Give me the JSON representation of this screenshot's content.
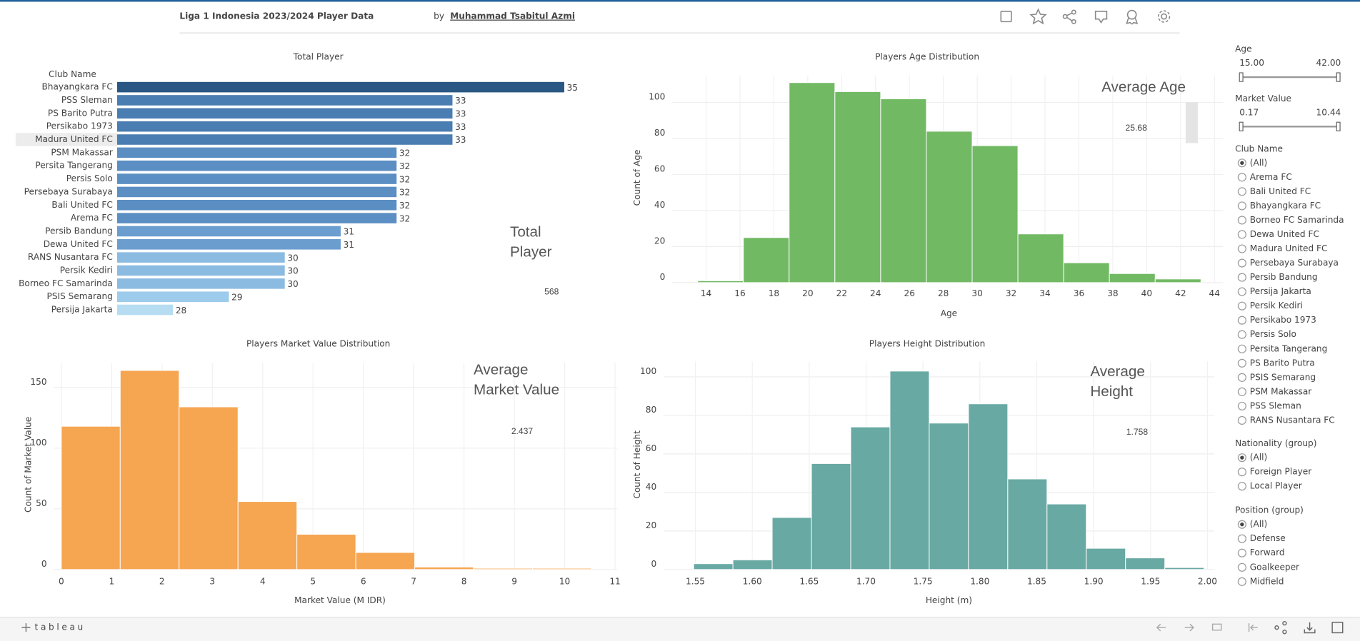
{
  "header": {
    "title": "Liga 1 Indonesia 2023/2024 Player Data",
    "by": "by",
    "author": "Muhammad Tsabitul Azmi"
  },
  "footer": {
    "brand": "tableau"
  },
  "kpis": [
    {
      "label": "Total Player",
      "value": 568
    },
    {
      "label": "Average Age",
      "value": 25.68
    },
    {
      "label": "Average Market Value",
      "value": 2.437
    },
    {
      "label": "Average Height",
      "value": 1.758
    }
  ],
  "filters": {
    "age": {
      "label": "Age",
      "min": "15.00",
      "max": "42.00"
    },
    "market_value": {
      "label": "Market Value",
      "min": "0.17",
      "max": "10.44"
    },
    "club": {
      "label": "Club Name",
      "options": [
        "(All)",
        "Arema FC",
        "Bali United FC",
        "Bhayangkara FC",
        "Borneo FC Samarinda",
        "Dewa United FC",
        "Madura United FC",
        "Persebaya Surabaya",
        "Persib Bandung",
        "Persija Jakarta",
        "Persik Kediri",
        "Persikabo 1973",
        "Persis Solo",
        "Persita Tangerang",
        "PS Barito Putra",
        "PSIS Semarang",
        "PSM Makassar",
        "PSS Sleman",
        "RANS Nusantara FC"
      ]
    },
    "nationality": {
      "label": "Nationality (group)",
      "options": [
        "(All)",
        "Foreign Player",
        "Local Player"
      ]
    },
    "position": {
      "label": "Position (group)",
      "options": [
        "(All)",
        "Defense",
        "Forward",
        "Goalkeeper",
        "Midfield"
      ]
    }
  },
  "chart_data": [
    {
      "type": "hbar",
      "title": "Total Player",
      "y_label": "Club Name",
      "categories": [
        "Bhayangkara FC",
        "PSS Sleman",
        "PS Barito Putra",
        "Persikabo 1973",
        "Madura United FC",
        "PSM Makassar",
        "Persita Tangerang",
        "Persis Solo",
        "Persebaya Surabaya",
        "Bali United FC",
        "Arema FC",
        "Persib Bandung",
        "Dewa United FC",
        "RANS Nusantara FC",
        "Persik Kediri",
        "Borneo FC Samarinda",
        "PSIS Semarang",
        "Persija Jakarta"
      ],
      "values": [
        35,
        33,
        33,
        33,
        33,
        32,
        32,
        32,
        32,
        32,
        32,
        31,
        31,
        30,
        30,
        30,
        29,
        28
      ],
      "colors": [
        "#2a5783",
        "#4a7db1",
        "#4a7db1",
        "#4a7db1",
        "#4a7db1",
        "#5b8ec2",
        "#5b8ec2",
        "#5b8ec2",
        "#5b8ec2",
        "#5b8ec2",
        "#5b8ec2",
        "#6b9dcf",
        "#6b9dcf",
        "#8cbbe2",
        "#8cbbe2",
        "#8cbbe2",
        "#9dcbeb",
        "#b6dcf2"
      ],
      "xlim": [
        27,
        36
      ]
    },
    {
      "type": "histogram",
      "title": "Players Age Distribution",
      "x_label": "Age",
      "y_label": "Count of Age",
      "color": "#72b964",
      "bins": [
        13.5,
        16.2,
        18.9,
        21.6,
        24.3,
        27,
        29.7,
        32.4,
        35.1,
        37.8,
        40.5,
        43.2
      ],
      "counts": [
        1,
        25,
        111,
        106,
        102,
        84,
        76,
        27,
        11,
        5,
        2
      ],
      "xlim": [
        12,
        44.5
      ],
      "ylim": [
        0,
        115
      ],
      "xticks": [
        14,
        16,
        18,
        20,
        22,
        24,
        26,
        28,
        30,
        32,
        34,
        36,
        38,
        40,
        42,
        44
      ],
      "yticks": [
        0,
        20,
        40,
        60,
        80,
        100
      ]
    },
    {
      "type": "histogram",
      "title": "Players Market Value Distribution",
      "x_label": "Market Value (M IDR)",
      "y_label": "Count of Market Value",
      "color": "#f6a551",
      "bins": [
        0,
        1.17,
        2.34,
        3.51,
        4.68,
        5.85,
        7.02,
        8.19,
        9.36,
        10.53
      ],
      "counts": [
        118,
        164,
        134,
        56,
        29,
        14,
        2,
        1,
        1
      ],
      "xlim": [
        -0.15,
        11.05
      ],
      "ylim": [
        0,
        170
      ],
      "xticks": [
        0,
        1,
        2,
        3,
        4,
        5,
        6,
        7,
        8,
        9,
        10,
        11
      ],
      "yticks": [
        0,
        50,
        100,
        150
      ]
    },
    {
      "type": "histogram",
      "title": "Players Height Distribution",
      "x_label": "Height (m)",
      "y_label": "Count of Height",
      "color": "#69a9a3",
      "bins": [
        1.5485,
        1.583,
        1.6175,
        1.652,
        1.6865,
        1.721,
        1.7555,
        1.79,
        1.8245,
        1.859,
        1.8935,
        1.928,
        1.9625,
        1.997
      ],
      "counts": [
        3,
        5,
        27,
        55,
        74,
        103,
        76,
        86,
        47,
        34,
        11,
        6,
        1
      ],
      "xlim": [
        1.522,
        2.006
      ],
      "ylim": [
        0,
        108
      ],
      "xticks": [
        1.55,
        {
          "value": 1.6,
          "label": "1.60"
        },
        1.65,
        {
          "value": 1.7,
          "label": "1.70"
        },
        1.75,
        {
          "value": 1.8,
          "label": "1.80"
        },
        1.85,
        {
          "value": 1.9,
          "label": "1.90"
        },
        1.95,
        {
          "value": 2,
          "label": "2.00"
        }
      ],
      "yticks": [
        0,
        20,
        40,
        60,
        80,
        100
      ]
    }
  ]
}
